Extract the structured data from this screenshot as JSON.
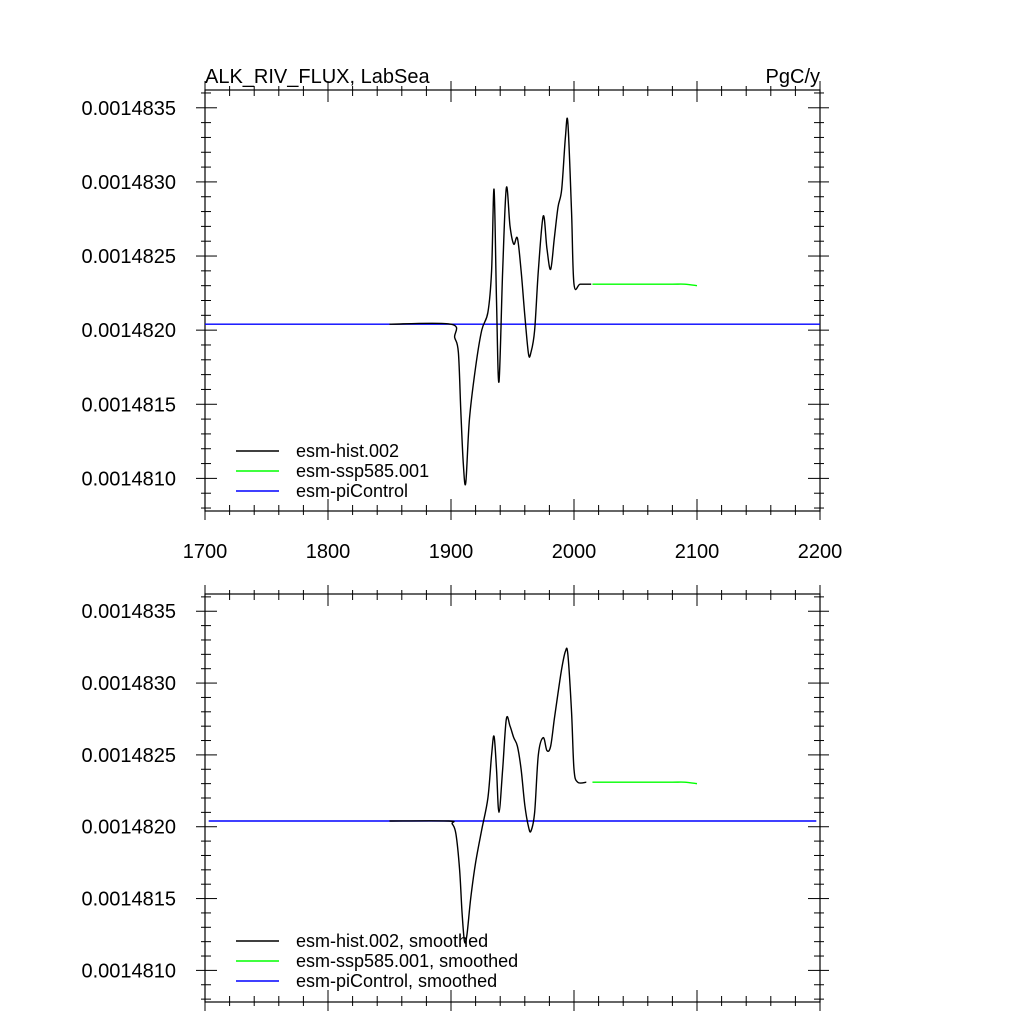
{
  "chart_data": [
    {
      "type": "line",
      "title_left": "ALK_RIV_FLUX, LabSea",
      "title_right": "PgC/y",
      "xlim": [
        1700,
        2200
      ],
      "ylim": [
        0.00148078,
        0.00148362
      ],
      "x_ticks": [
        1700,
        1800,
        1900,
        2000,
        2100,
        2200
      ],
      "x_tick_labels": [
        "1700",
        "1800",
        "1900",
        "2000",
        "2100",
        "2200"
      ],
      "y_ticks": [
        0.001481,
        0.0014815,
        0.001482,
        0.0014825,
        0.001483,
        0.0014835
      ],
      "y_tick_labels": [
        "0.0014810",
        "0.0014815",
        "0.0014820",
        "0.0014825",
        "0.0014830",
        "0.0014835"
      ],
      "show_x_tick_labels": true,
      "legend_position": "bottom-left",
      "series": [
        {
          "name": "esm-hist.002",
          "color": "#000000",
          "x": [
            1850,
            1900,
            1903,
            1906,
            1908,
            1910,
            1912,
            1915,
            1920,
            1925,
            1930,
            1933,
            1935,
            1937,
            1939,
            1942,
            1945,
            1948,
            1951,
            1954,
            1957,
            1960,
            1963,
            1965,
            1968,
            1971,
            1975,
            1978,
            1981,
            1984,
            1987,
            1990,
            1993,
            1995,
            1998,
            2000,
            2005,
            2014
          ],
          "y": [
            0.00148204,
            0.00148204,
            0.00148195,
            0.00148185,
            0.00148145,
            0.0014811,
            0.00148097,
            0.0014814,
            0.00148175,
            0.001482,
            0.00148212,
            0.0014824,
            0.00148295,
            0.0014822,
            0.00148165,
            0.0014824,
            0.00148296,
            0.0014827,
            0.00148258,
            0.00148262,
            0.0014824,
            0.0014821,
            0.00148184,
            0.00148185,
            0.001482,
            0.0014824,
            0.00148277,
            0.00148255,
            0.00148241,
            0.00148262,
            0.00148283,
            0.00148295,
            0.0014833,
            0.0014834,
            0.0014828,
            0.00148231,
            0.00148231,
            0.00148231
          ]
        },
        {
          "name": "esm-ssp585.001",
          "color": "#00ff00",
          "x": [
            2015,
            2040,
            2060,
            2080,
            2090,
            2100
          ],
          "y": [
            0.00148231,
            0.00148231,
            0.00148231,
            0.00148231,
            0.00148231,
            0.0014823
          ]
        },
        {
          "name": "esm-piControl",
          "color": "#0000ff",
          "x": [
            1700,
            2200
          ],
          "y": [
            0.00148204,
            0.00148204
          ]
        }
      ]
    },
    {
      "type": "line",
      "title_left": "",
      "title_right": "",
      "xlim": [
        1700,
        2200
      ],
      "ylim": [
        0.00148078,
        0.00148362
      ],
      "x_ticks": [
        1700,
        1800,
        1900,
        2000,
        2100,
        2200
      ],
      "x_tick_labels": [],
      "y_ticks": [
        0.001481,
        0.0014815,
        0.001482,
        0.0014825,
        0.001483,
        0.0014835
      ],
      "y_tick_labels": [
        "0.0014810",
        "0.0014815",
        "0.0014820",
        "0.0014825",
        "0.0014830",
        "0.0014835"
      ],
      "show_x_tick_labels": false,
      "legend_position": "bottom-left",
      "series": [
        {
          "name": "esm-hist.002, smoothed",
          "color": "#000000",
          "x": [
            1850,
            1898,
            1901,
            1904,
            1907,
            1909,
            1911,
            1913,
            1916,
            1920,
            1925,
            1930,
            1933,
            1935,
            1937,
            1939,
            1942,
            1945,
            1948,
            1951,
            1954,
            1957,
            1960,
            1963,
            1965,
            1968,
            1971,
            1975,
            1978,
            1981,
            1984,
            1987,
            1990,
            1993,
            1995,
            1998,
            2000,
            2003,
            2010
          ],
          "y": [
            0.00148204,
            0.00148204,
            0.00148202,
            0.00148195,
            0.0014817,
            0.0014814,
            0.0014812,
            0.00148125,
            0.0014815,
            0.00148175,
            0.00148198,
            0.0014822,
            0.0014825,
            0.00148263,
            0.0014824,
            0.0014821,
            0.0014824,
            0.00148275,
            0.0014827,
            0.00148262,
            0.00148256,
            0.0014824,
            0.00148215,
            0.001482,
            0.00148197,
            0.0014821,
            0.0014825,
            0.00148262,
            0.00148253,
            0.00148256,
            0.00148275,
            0.00148293,
            0.0014831,
            0.00148322,
            0.0014832,
            0.0014828,
            0.0014824,
            0.00148231,
            0.00148231
          ]
        },
        {
          "name": "esm-ssp585.001, smoothed",
          "color": "#00ff00",
          "x": [
            2015,
            2040,
            2060,
            2080,
            2090,
            2100
          ],
          "y": [
            0.00148231,
            0.00148231,
            0.00148231,
            0.00148231,
            0.00148231,
            0.0014823
          ]
        },
        {
          "name": "esm-piControl, smoothed",
          "color": "#0000ff",
          "x": [
            1703,
            2197
          ],
          "y": [
            0.00148204,
            0.00148204
          ]
        }
      ]
    }
  ]
}
